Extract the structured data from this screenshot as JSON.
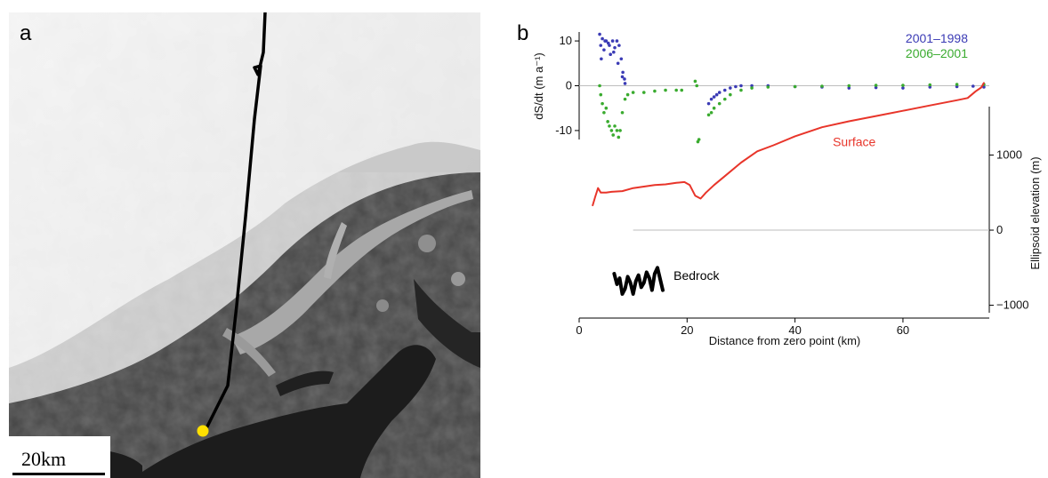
{
  "panel_a": {
    "letter": "a",
    "scale_bar_label": "20km",
    "colors": {
      "ice": "#f1f1f1",
      "rock": "#3e3e3e",
      "water": "#1b1b1b",
      "track": "#000000",
      "marker": "#ffe000"
    }
  },
  "panel_b": {
    "letter": "b",
    "colors": {
      "s2001_1998": "#3b3bb5",
      "s2006_2001": "#3aab2f",
      "surface": "#e8352a",
      "bedrock": "#000000"
    }
  },
  "chart_data": [
    {
      "type": "scatter",
      "panel": "b-upper",
      "ylabel": "dS/dt (m a⁻¹)",
      "ylim": [
        -12,
        12
      ],
      "yticks": [
        10,
        0,
        -10
      ],
      "series": [
        {
          "name": "2001–1998",
          "color": "#3b3bb5",
          "x": [
            3.8,
            4.0,
            4.3,
            4.6,
            5.0,
            5.4,
            5.8,
            6.2,
            6.6,
            7.0,
            7.4,
            7.8,
            8.1,
            8.4,
            4.1,
            4.8,
            5.6,
            6.4,
            7.2,
            8.0,
            8.5,
            24.0,
            24.5,
            25.0,
            25.5,
            26.0,
            27.0,
            28.0,
            29.0,
            30.0,
            32.0,
            35.0,
            40.0,
            45.0,
            50.0,
            55.0,
            60.0,
            65.0,
            70.0,
            73.0,
            75.0
          ],
          "y": [
            11.5,
            9.0,
            10.5,
            8.0,
            10.0,
            9.5,
            7.0,
            10.0,
            8.5,
            10.0,
            9.0,
            6.0,
            3.0,
            1.5,
            6.0,
            10.0,
            9.0,
            7.5,
            5.0,
            2.0,
            0.5,
            -4.0,
            -3.0,
            -2.5,
            -2.0,
            -1.5,
            -1.0,
            -0.5,
            -0.2,
            0.0,
            0.0,
            0.0,
            -0.2,
            -0.3,
            -0.5,
            -0.4,
            -0.5,
            -0.3,
            -0.2,
            -0.1,
            -0.3
          ]
        },
        {
          "name": "2006–2001",
          "color": "#3aab2f",
          "x": [
            3.8,
            4.0,
            4.3,
            4.6,
            5.0,
            5.3,
            5.6,
            6.0,
            6.3,
            6.6,
            7.0,
            7.3,
            7.6,
            8.0,
            8.5,
            9.0,
            10.0,
            12.0,
            14.0,
            16.0,
            18.0,
            19.0,
            21.5,
            21.8,
            22.0,
            22.2,
            24.0,
            24.5,
            25.0,
            26.0,
            27.0,
            28.0,
            30.0,
            32.0,
            35.0,
            40.0,
            45.0,
            50.0,
            55.0,
            60.0,
            65.0,
            70.0,
            75.0
          ],
          "y": [
            0.0,
            -2.0,
            -4.0,
            -6.0,
            -5.0,
            -8.0,
            -9.0,
            -10.0,
            -11.0,
            -9.0,
            -10.0,
            -11.5,
            -10.0,
            -6.0,
            -3.0,
            -2.0,
            -1.5,
            -1.5,
            -1.2,
            -1.0,
            -1.0,
            -1.0,
            1.0,
            0.0,
            -12.5,
            -12.0,
            -6.5,
            -6.0,
            -5.0,
            -4.0,
            -3.0,
            -2.0,
            -1.0,
            -0.5,
            -0.3,
            -0.2,
            -0.1,
            0.0,
            0.1,
            0.1,
            0.2,
            0.3,
            0.3
          ]
        }
      ],
      "legend_placement": "top-right"
    },
    {
      "type": "line",
      "panel": "b-lower",
      "xlabel": "Distance from zero point (km)",
      "xlim": [
        0,
        76
      ],
      "xticks": [
        0,
        20,
        40,
        60
      ],
      "ylabel": "Ellipsoid elevation (m)",
      "ylim": [
        -1100,
        2000
      ],
      "yticks": [
        1000,
        0,
        -1000
      ],
      "zero_line_from_x": 10,
      "series": [
        {
          "name": "Surface",
          "color": "#e8352a",
          "x": [
            2.5,
            3.0,
            3.5,
            4.0,
            5.0,
            6.0,
            8.0,
            10.0,
            12.0,
            14.0,
            16.0,
            18.0,
            19.5,
            20.5,
            21.5,
            22.5,
            23.5,
            25.0,
            27.0,
            30.0,
            33.0,
            36.0,
            40.0,
            45.0,
            50.0,
            55.0,
            60.0,
            65.0,
            70.0,
            72.0,
            73.5,
            74.5,
            75.0
          ],
          "y": [
            330,
            450,
            560,
            500,
            500,
            510,
            520,
            560,
            580,
            600,
            610,
            630,
            640,
            600,
            460,
            420,
            500,
            600,
            720,
            900,
            1050,
            1130,
            1250,
            1370,
            1450,
            1520,
            1590,
            1660,
            1730,
            1760,
            1850,
            1900,
            1960
          ]
        },
        {
          "name": "Bedrock",
          "color": "#000000",
          "x": [
            6.5,
            7.0,
            7.5,
            8.0,
            8.5,
            9.0,
            9.5,
            10.0,
            10.5,
            11.0,
            11.5,
            12.0,
            12.5,
            13.0,
            13.5,
            14.0,
            14.5,
            15.0,
            15.5
          ],
          "y": [
            -580,
            -720,
            -640,
            -850,
            -780,
            -620,
            -700,
            -850,
            -680,
            -600,
            -760,
            -700,
            -560,
            -640,
            -800,
            -580,
            -500,
            -650,
            -800
          ]
        }
      ],
      "annotations": [
        "Surface",
        "Bedrock"
      ]
    }
  ]
}
